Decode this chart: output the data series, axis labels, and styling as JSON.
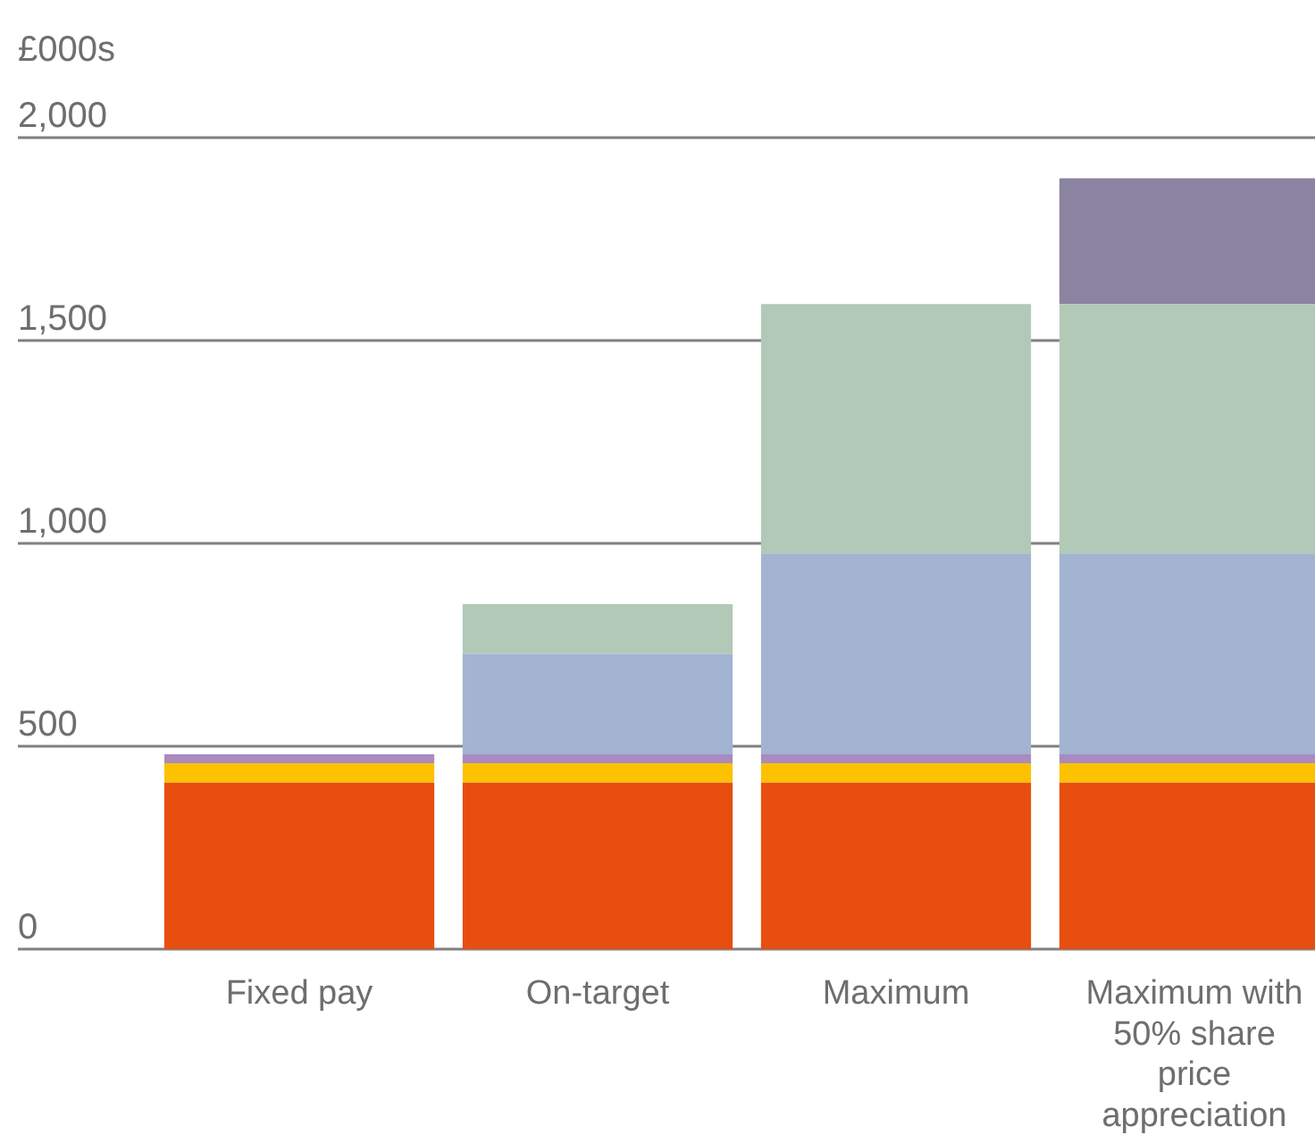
{
  "chart_data": {
    "type": "bar",
    "stacked": true,
    "ylabel": "£000s",
    "categories": [
      "Fixed pay",
      "On-target",
      "Maximum",
      "Maximum with 50% share price appreciation"
    ],
    "series": [
      {
        "color": "#e84e0f",
        "values": [
          410,
          410,
          410,
          410
        ]
      },
      {
        "color": "#fcc200",
        "values": [
          48,
          48,
          48,
          48
        ]
      },
      {
        "color": "#a98bc0",
        "values": [
          22,
          22,
          22,
          22
        ]
      },
      {
        "color": "#a2b4d2",
        "values": [
          null,
          248,
          495,
          495
        ]
      },
      {
        "color": "#b2c9b8",
        "values": [
          null,
          122,
          615,
          615
        ]
      },
      {
        "color": "#8a83a2",
        "values": [
          null,
          null,
          null,
          310
        ]
      }
    ],
    "ylim": [
      0,
      2000
    ],
    "yticks": [
      0,
      500,
      {
        "value": 1000,
        "label": "1,000"
      },
      {
        "value": 1500,
        "label": "1,500"
      },
      {
        "value": 2000,
        "label": "2,000"
      }
    ],
    "grid": "y"
  }
}
